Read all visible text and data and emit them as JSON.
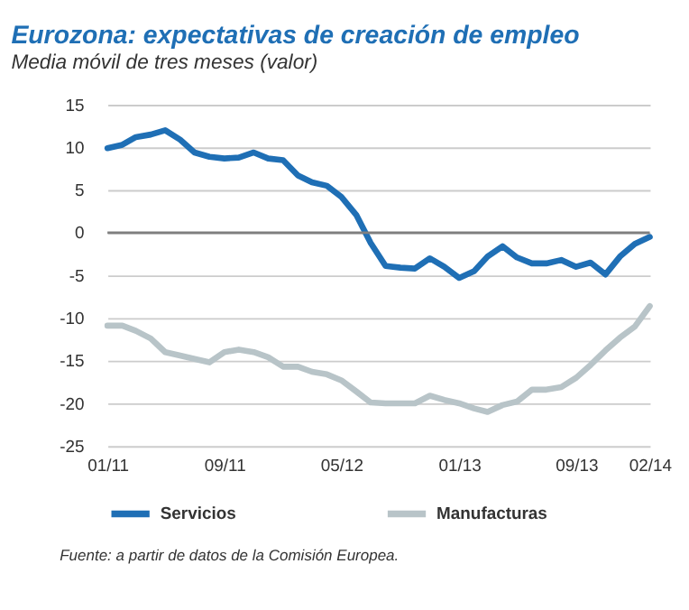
{
  "chart_data": {
    "type": "line",
    "title": "Eurozona: expectativas de creación de empleo",
    "subtitle": "Media móvil de tres meses (valor)",
    "x": [
      "2011-01",
      "2011-02",
      "2011-03",
      "2011-04",
      "2011-05",
      "2011-06",
      "2011-07",
      "2011-08",
      "2011-09",
      "2011-10",
      "2011-11",
      "2011-12",
      "2012-01",
      "2012-02",
      "2012-03",
      "2012-04",
      "2012-05",
      "2012-06",
      "2012-07",
      "2012-08",
      "2012-09",
      "2012-10",
      "2012-11",
      "2012-12",
      "2013-01",
      "2013-02",
      "2013-03",
      "2013-04",
      "2013-05",
      "2013-06",
      "2013-07",
      "2013-08",
      "2013-09",
      "2013-10",
      "2013-11",
      "2013-12",
      "2014-01",
      "2014-02"
    ],
    "series": [
      {
        "name": "Servicios",
        "color": "#1f6fb5",
        "values": [
          9.9,
          10.3,
          11.2,
          11.5,
          12.0,
          10.9,
          9.4,
          8.9,
          8.7,
          8.8,
          9.4,
          8.7,
          8.5,
          6.7,
          5.9,
          5.5,
          4.2,
          2.1,
          -1.2,
          -3.9,
          -4.1,
          -4.2,
          -3.0,
          -4.0,
          -5.3,
          -4.5,
          -2.8,
          -1.6,
          -2.9,
          -3.6,
          -3.6,
          -3.2,
          -4.0,
          -3.5,
          -4.9,
          -2.8,
          -1.3,
          -0.5
        ]
      },
      {
        "name": "Manufacturas",
        "color": "#b8c4c8",
        "values": [
          -10.9,
          -10.9,
          -11.5,
          -12.4,
          -14.0,
          -14.4,
          -14.8,
          -15.2,
          -14.0,
          -13.7,
          -14.0,
          -14.6,
          -15.7,
          -15.7,
          -16.3,
          -16.6,
          -17.3,
          -18.6,
          -19.9,
          -20.0,
          -20.0,
          -20.0,
          -19.1,
          -19.6,
          -20.0,
          -20.6,
          -21.0,
          -20.2,
          -19.8,
          -18.4,
          -18.4,
          -18.1,
          -17.0,
          -15.5,
          -13.8,
          -12.3,
          -11.0,
          -8.6
        ]
      }
    ],
    "xlim": [
      "2011-01",
      "2014-02"
    ],
    "xticks": [
      {
        "value": "2011-01",
        "label": "01/11"
      },
      {
        "value": "2011-09",
        "label": "09/11"
      },
      {
        "value": "2012-05",
        "label": "05/12"
      },
      {
        "value": "2013-01",
        "label": "01/13"
      },
      {
        "value": "2013-09",
        "label": "09/13"
      },
      {
        "value": "2014-02",
        "label": "02/14"
      }
    ],
    "ylim": [
      -25,
      15
    ],
    "yticks": [
      -25,
      -20,
      -15,
      -10,
      -5,
      0,
      5,
      10,
      15
    ],
    "grid": "y",
    "legend": "bottom",
    "ref_lines": [
      {
        "axis": "y",
        "value": 0,
        "color": "#7f7f7f"
      }
    ],
    "annotations": [
      "Fuente: a partir de datos de la Comisión Europea."
    ]
  }
}
